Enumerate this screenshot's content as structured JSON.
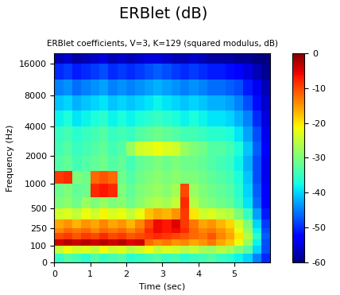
{
  "chart_data": {
    "type": "heatmap",
    "title": "ERBlet (dB)",
    "subtitle": "ERBlet coefficients, V=3, K=129 (squared modulus, dB)",
    "x_label": "Time (sec)",
    "y_label": "Frequency (Hz)",
    "xlim": [
      0,
      6
    ],
    "xticks": [
      0,
      1,
      2,
      3,
      4,
      5
    ],
    "ylim": [
      0,
      20000
    ],
    "yticks": [
      0,
      100,
      250,
      500,
      1000,
      2000,
      4000,
      8000,
      16000
    ],
    "time_edges": [
      0,
      0.25,
      0.5,
      0.75,
      1,
      1.25,
      1.5,
      1.75,
      2,
      2.25,
      2.5,
      2.75,
      3,
      3.25,
      3.5,
      3.75,
      4,
      4.25,
      4.5,
      4.75,
      5,
      5.25,
      5.5,
      5.75,
      6
    ],
    "freq_edges": [
      0,
      50,
      100,
      150,
      200,
      250,
      350,
      500,
      700,
      1000,
      1400,
      2000,
      2800,
      4000,
      5700,
      8000,
      11300,
      16000,
      20000
    ],
    "cells": [
      [
        -35,
        -33,
        -34,
        -36,
        -33,
        -35,
        -34,
        -33,
        -36,
        -35,
        -34,
        -33,
        -35,
        -34,
        -36,
        -35,
        -34,
        -33,
        -35,
        -36,
        -38,
        -40,
        -45,
        -50
      ],
      [
        -25,
        -22,
        -24,
        -23,
        -25,
        -22,
        -24,
        -23,
        -26,
        -24,
        -22,
        -25,
        -23,
        -24,
        -26,
        -25,
        -27,
        -28,
        -26,
        -27,
        -30,
        -33,
        -40,
        -48
      ],
      [
        -4,
        -3,
        -4,
        -3,
        -4,
        -3,
        -4,
        -3,
        -5,
        -4,
        -12,
        -14,
        -13,
        -15,
        -14,
        -16,
        -15,
        -13,
        -16,
        -18,
        -22,
        -28,
        -38,
        -48
      ],
      [
        -10,
        -9,
        -11,
        -9,
        -10,
        -8,
        -10,
        -9,
        -11,
        -10,
        -9,
        -8,
        -9,
        -10,
        -11,
        -12,
        -13,
        -11,
        -14,
        -16,
        -20,
        -26,
        -36,
        -47
      ],
      [
        -14,
        -12,
        -13,
        -12,
        -14,
        -12,
        -13,
        -12,
        -14,
        -12,
        -8,
        -6,
        -7,
        -6,
        -8,
        -12,
        -14,
        -13,
        -15,
        -17,
        -22,
        -28,
        -38,
        -48
      ],
      [
        -16,
        -15,
        -17,
        -15,
        -16,
        -14,
        -16,
        -15,
        -17,
        -14,
        -10,
        -6,
        -7,
        -5,
        -9,
        -13,
        -16,
        -15,
        -17,
        -19,
        -24,
        -30,
        -40,
        -49
      ],
      [
        -24,
        -23,
        -25,
        -22,
        -24,
        -21,
        -23,
        -22,
        -25,
        -22,
        -18,
        -16,
        -17,
        -15,
        -9,
        -20,
        -24,
        -23,
        -25,
        -26,
        -30,
        -35,
        -43,
        -51
      ],
      [
        -30,
        -29,
        -31,
        -28,
        -30,
        -28,
        -30,
        -29,
        -31,
        -29,
        -27,
        -26,
        -27,
        -25,
        -8,
        -26,
        -29,
        -30,
        -31,
        -32,
        -35,
        -39,
        -46,
        -53
      ],
      [
        -31,
        -30,
        -32,
        -31,
        -8,
        -7,
        -8,
        -30,
        -32,
        -30,
        -29,
        -28,
        -29,
        -27,
        -10,
        -28,
        -30,
        -31,
        -32,
        -33,
        -36,
        -40,
        -47,
        -53
      ],
      [
        -9,
        -8,
        -30,
        -31,
        -12,
        -11,
        -12,
        -31,
        -33,
        -31,
        -30,
        -29,
        -30,
        -29,
        -30,
        -30,
        -31,
        -32,
        -33,
        -34,
        -37,
        -41,
        -48,
        -54
      ],
      [
        -33,
        -32,
        -34,
        -33,
        -32,
        -31,
        -33,
        -32,
        -34,
        -32,
        -31,
        -30,
        -31,
        -30,
        -31,
        -31,
        -32,
        -33,
        -34,
        -35,
        -38,
        -42,
        -48,
        -54
      ],
      [
        -34,
        -33,
        -35,
        -34,
        -33,
        -32,
        -34,
        -33,
        -28,
        -24,
        -23,
        -22,
        -23,
        -24,
        -28,
        -30,
        -31,
        -33,
        -33,
        -34,
        -37,
        -41,
        -47,
        -53
      ],
      [
        -35,
        -34,
        -36,
        -35,
        -34,
        -33,
        -35,
        -34,
        -35,
        -33,
        -32,
        -31,
        -32,
        -33,
        -34,
        -34,
        -35,
        -36,
        -36,
        -37,
        -39,
        -43,
        -48,
        -54
      ],
      [
        -38,
        -37,
        -39,
        -38,
        -37,
        -36,
        -38,
        -37,
        -38,
        -37,
        -36,
        -35,
        -36,
        -37,
        -38,
        -37,
        -38,
        -39,
        -39,
        -40,
        -42,
        -45,
        -50,
        -55
      ],
      [
        -41,
        -40,
        -42,
        -41,
        -40,
        -39,
        -41,
        -40,
        -41,
        -40,
        -39,
        -38,
        -39,
        -40,
        -41,
        -40,
        -41,
        -42,
        -42,
        -43,
        -45,
        -48,
        -52,
        -56
      ],
      [
        -45,
        -44,
        -46,
        -45,
        -44,
        -43,
        -45,
        -44,
        -45,
        -44,
        -43,
        -42,
        -43,
        -44,
        -45,
        -44,
        -45,
        -46,
        -46,
        -47,
        -48,
        -51,
        -54,
        -57
      ],
      [
        -50,
        -49,
        -51,
        -50,
        -49,
        -48,
        -50,
        -49,
        -50,
        -49,
        -48,
        -47,
        -48,
        -49,
        -50,
        -49,
        -50,
        -51,
        -51,
        -52,
        -53,
        -55,
        -57,
        -59
      ],
      [
        -57,
        -56,
        -58,
        -57,
        -56,
        -55,
        -57,
        -56,
        -57,
        -56,
        -55,
        -55,
        -56,
        -57,
        -57,
        -56,
        -57,
        -58,
        -58,
        -58,
        -59,
        -59,
        -60,
        -60
      ]
    ],
    "colorbar_range": [
      -60,
      0
    ],
    "colorbar_ticks": [
      0,
      -10,
      -20,
      -30,
      -40,
      -50,
      -60
    ]
  }
}
